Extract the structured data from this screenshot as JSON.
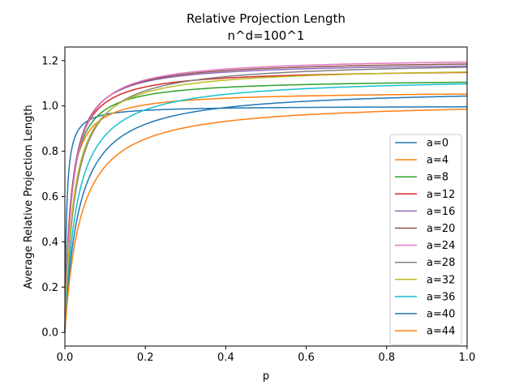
{
  "chart_data": {
    "type": "line",
    "title": "Relative Projection Length",
    "subtitle": "n^d=100^1",
    "xlabel": "p",
    "ylabel": "Average Relative Projection Length",
    "xlim": [
      0.0,
      1.0
    ],
    "ylim": [
      -0.06,
      1.26
    ],
    "xticks": [
      "0.0",
      "0.2",
      "0.4",
      "0.6",
      "0.8",
      "1.0"
    ],
    "yticks": [
      "0.0",
      "0.2",
      "0.4",
      "0.6",
      "0.8",
      "1.0",
      "1.2"
    ],
    "grid": false,
    "legend_position": "lower-right",
    "series": [
      {
        "name": "a=0",
        "color": "#1f77b4",
        "asymptote": 1.0,
        "rise_scale": 0.004
      },
      {
        "name": "a=4",
        "color": "#ff7f0e",
        "asymptote": 1.065,
        "rise_scale": 0.012
      },
      {
        "name": "a=8",
        "color": "#2ca02c",
        "asymptote": 1.12,
        "rise_scale": 0.014
      },
      {
        "name": "a=12",
        "color": "#d62728",
        "asymptote": 1.165,
        "rise_scale": 0.015
      },
      {
        "name": "a=16",
        "color": "#9467bd",
        "asymptote": 1.195,
        "rise_scale": 0.016
      },
      {
        "name": "a=20",
        "color": "#8c564b",
        "asymptote": 1.205,
        "rise_scale": 0.017
      },
      {
        "name": "a=24",
        "color": "#e377c2",
        "asymptote": 1.215,
        "rise_scale": 0.018
      },
      {
        "name": "a=28",
        "color": "#7f7f7f",
        "asymptote": 1.2,
        "rise_scale": 0.025
      },
      {
        "name": "a=32",
        "color": "#bcbd22",
        "asymptote": 1.175,
        "rise_scale": 0.022
      },
      {
        "name": "a=36",
        "color": "#17becf",
        "asymptote": 1.13,
        "rise_scale": 0.03
      },
      {
        "name": "a=40",
        "color": "#1f77b4",
        "asymptote": 1.08,
        "rise_scale": 0.035
      },
      {
        "name": "a=44",
        "color": "#ff7f0e",
        "asymptote": 1.025,
        "rise_scale": 0.04
      }
    ]
  }
}
